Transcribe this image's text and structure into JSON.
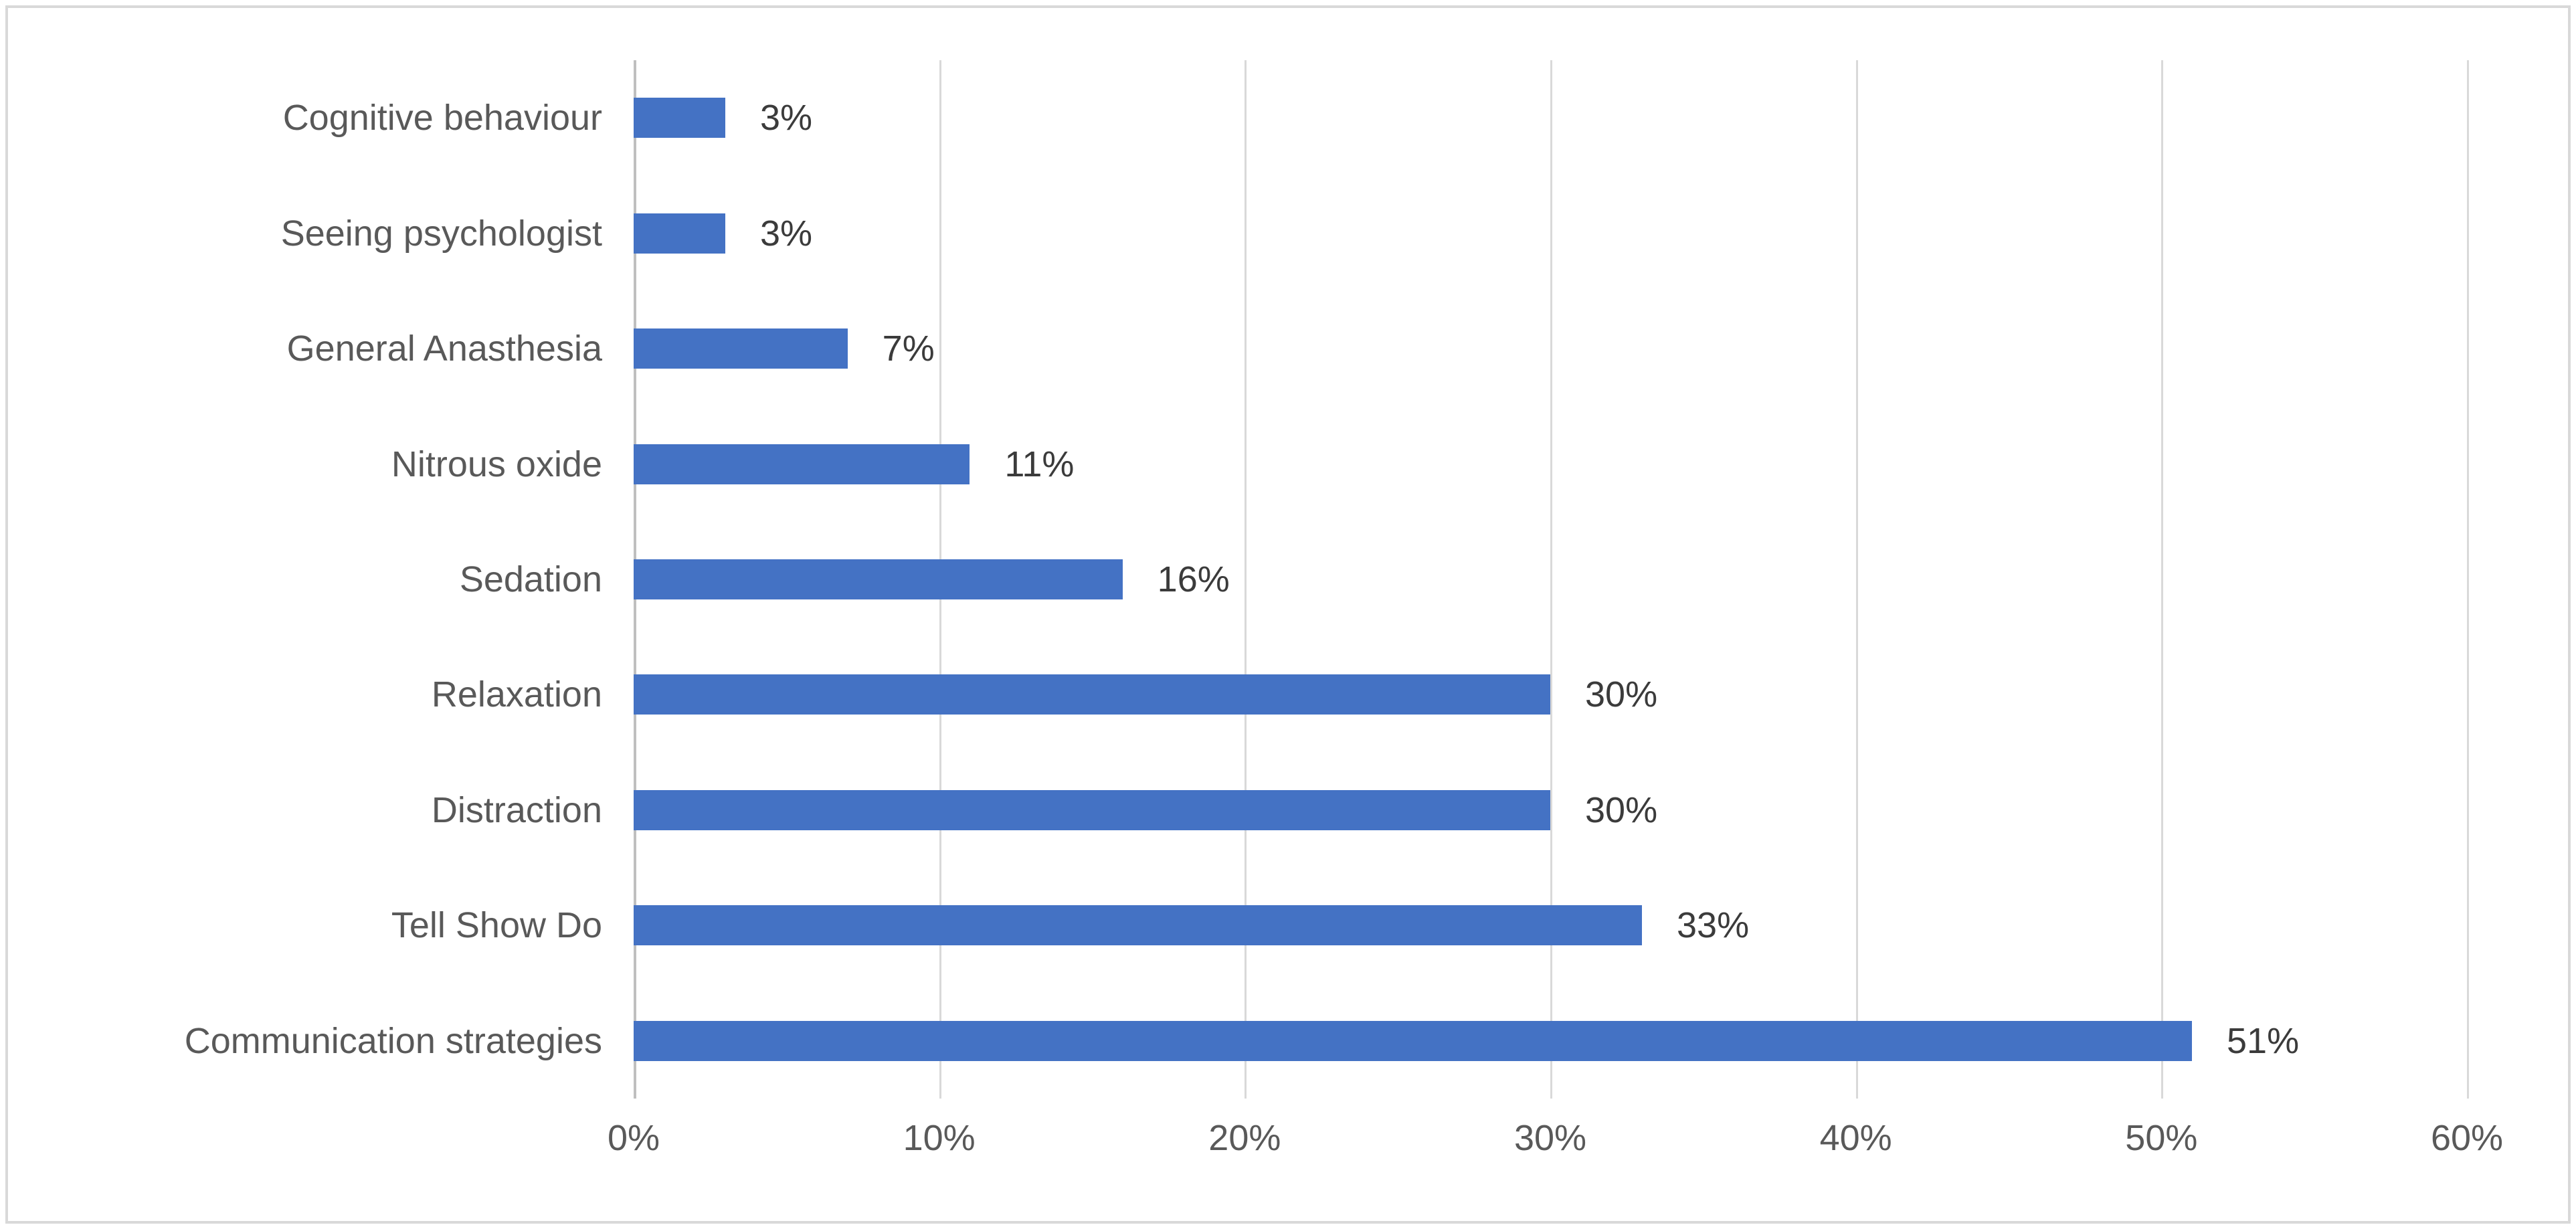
{
  "frame": {
    "border_color": "#d9d9d9",
    "background_color": "#ffffff"
  },
  "chart_data": {
    "type": "bar",
    "orientation": "horizontal",
    "title": "",
    "legend": "none",
    "grid": "vertical-only",
    "categories_top_to_bottom": [
      "Cognitive behaviour",
      "Seeing psychologist",
      "General Anasthesia",
      "Nitrous oxide",
      "Sedation",
      "Relaxation",
      "Distraction",
      "Tell Show Do",
      "Communication strategies"
    ],
    "values_percent": [
      3,
      3,
      7,
      11,
      16,
      30,
      30,
      33,
      51
    ],
    "data_labels": [
      "3%",
      "3%",
      "7%",
      "11%",
      "16%",
      "30%",
      "30%",
      "33%",
      "51%"
    ],
    "x_axis": {
      "min": 0,
      "max": 60,
      "step": 10,
      "tick_labels": [
        "0%",
        "10%",
        "20%",
        "30%",
        "40%",
        "50%",
        "60%"
      ]
    },
    "colors": {
      "bar_fill": "#4472c4",
      "gridline": "#d9d9d9",
      "axis_line": "#bfbfbf",
      "category_label": "#595959",
      "tick_label": "#595959",
      "value_label": "#3b3b3b"
    }
  }
}
